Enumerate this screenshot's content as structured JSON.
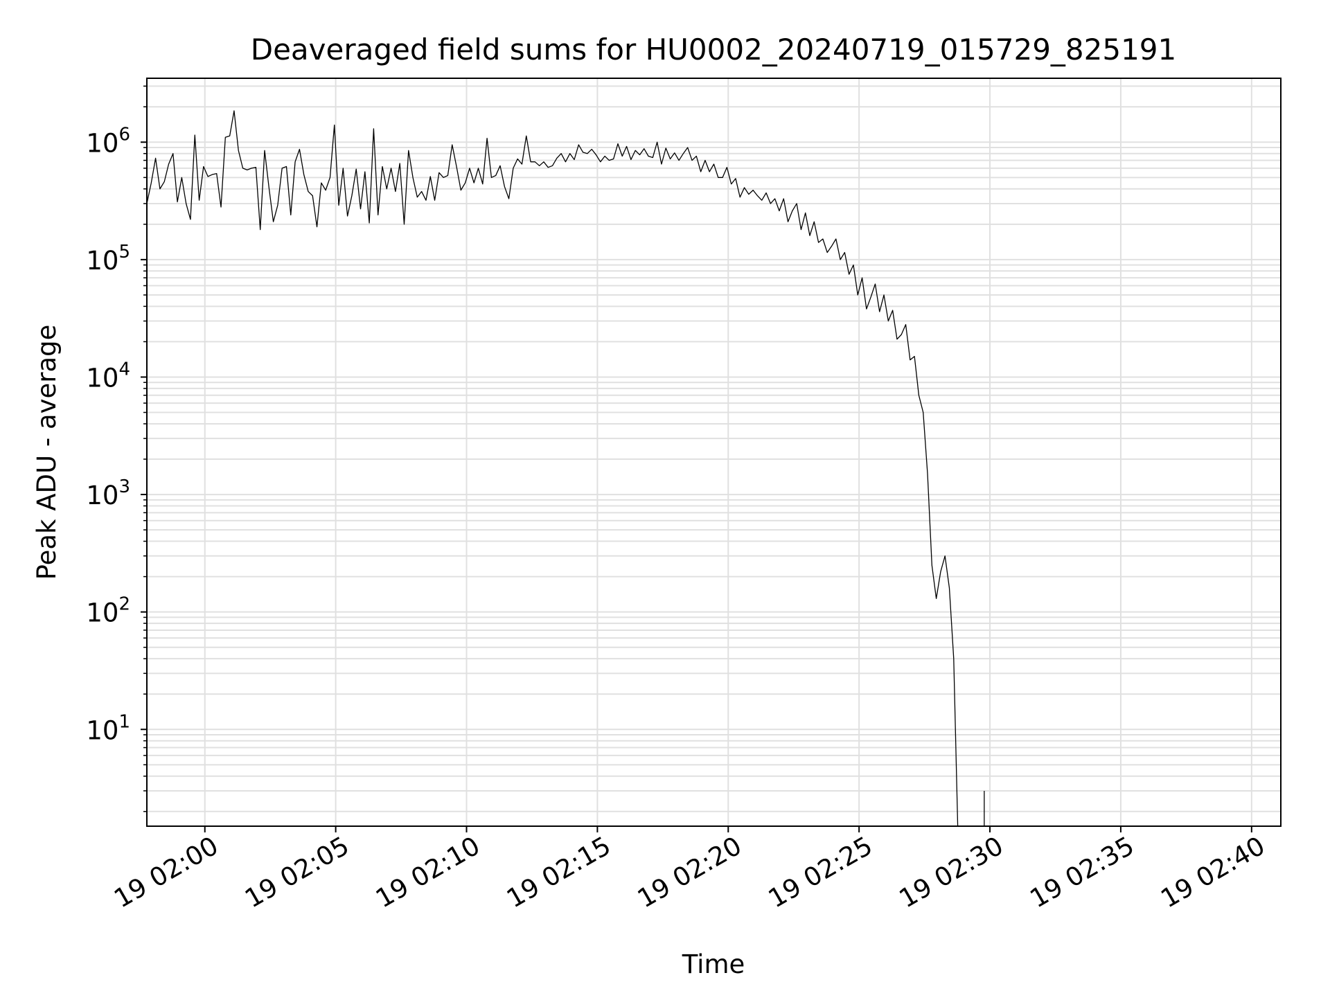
{
  "chart_data": {
    "type": "line",
    "title": "Deaveraged field sums for HU0002_20240719_015729_825191",
    "xlabel": "Time",
    "ylabel": "Peak ADU - average",
    "yscale": "log",
    "grid": true,
    "legend": "none",
    "line_color": "#000000",
    "grid_color": "#e0e0e0",
    "xlim": [
      "19 01:57:47",
      "19 02:41:07"
    ],
    "ylim": [
      1.5,
      3500000
    ],
    "x_ticks": [
      "19 02:00",
      "19 02:05",
      "19 02:10",
      "19 02:15",
      "19 02:20",
      "19 02:25",
      "19 02:30",
      "19 02:35",
      "19 02:40"
    ],
    "y_ticks": [
      {
        "base": "10",
        "exp": "1",
        "value": 10
      },
      {
        "base": "10",
        "exp": "2",
        "value": 100
      },
      {
        "base": "10",
        "exp": "3",
        "value": 1000
      },
      {
        "base": "10",
        "exp": "4",
        "value": 10000
      },
      {
        "base": "10",
        "exp": "5",
        "value": 100000
      },
      {
        "base": "10",
        "exp": "6",
        "value": 1000000
      }
    ],
    "series": [
      {
        "x_start": "19 01:57:47",
        "x_step_seconds": 10,
        "values": [
          300000,
          450000,
          730000,
          400000,
          460000,
          650000,
          800000,
          310000,
          500000,
          300000,
          220000,
          1150000,
          320000,
          620000,
          510000,
          530000,
          540000,
          280000,
          1100000,
          1130000,
          1850000,
          850000,
          600000,
          580000,
          600000,
          610000,
          180000,
          850000,
          410000,
          210000,
          290000,
          600000,
          620000,
          240000,
          680000,
          870000,
          530000,
          380000,
          350000,
          190000,
          450000,
          390000,
          500000,
          1400000,
          290000,
          600000,
          235000,
          350000,
          590000,
          270000,
          560000,
          205000,
          1300000,
          240000,
          620000,
          400000,
          600000,
          380000,
          660000,
          200000,
          850000,
          500000,
          340000,
          380000,
          320000,
          510000,
          320000,
          550000,
          500000,
          520000,
          950000,
          620000,
          390000,
          450000,
          600000,
          450000,
          600000,
          440000,
          1080000,
          500000,
          520000,
          630000,
          420000,
          330000,
          600000,
          720000,
          650000,
          1130000,
          680000,
          680000,
          630000,
          680000,
          610000,
          630000,
          730000,
          800000,
          680000,
          800000,
          710000,
          950000,
          820000,
          800000,
          870000,
          780000,
          680000,
          760000,
          700000,
          720000,
          970000,
          760000,
          920000,
          710000,
          850000,
          780000,
          880000,
          760000,
          740000,
          1000000,
          650000,
          890000,
          720000,
          810000,
          700000,
          800000,
          900000,
          700000,
          760000,
          560000,
          700000,
          560000,
          650000,
          500000,
          500000,
          610000,
          440000,
          490000,
          340000,
          410000,
          360000,
          390000,
          350000,
          320000,
          370000,
          300000,
          330000,
          260000,
          330000,
          210000,
          260000,
          300000,
          180000,
          250000,
          160000,
          210000,
          140000,
          150000,
          115000,
          130000,
          150000,
          100000,
          115000,
          75000,
          90000,
          50000,
          70000,
          38000,
          48000,
          62000,
          36000,
          50000,
          30000,
          37000,
          21000,
          23000,
          28000,
          14000,
          15000,
          7000,
          5000,
          1500,
          250,
          130,
          220,
          300,
          160,
          40,
          null,
          null,
          null,
          null,
          null,
          null,
          3
        ]
      }
    ]
  }
}
